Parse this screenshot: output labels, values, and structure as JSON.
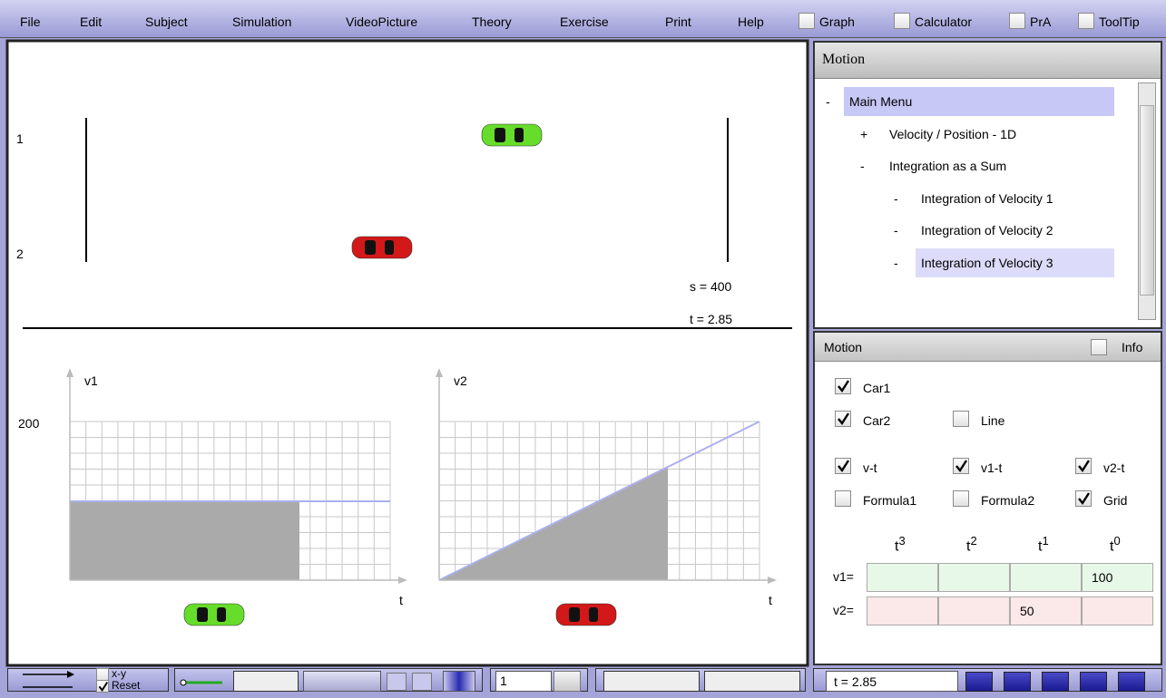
{
  "menu": {
    "items": [
      "File",
      "Edit",
      "Subject",
      "Simulation",
      "VideoPicture",
      "Theory",
      "Exercise",
      "Print",
      "Help"
    ],
    "toggles": [
      {
        "label": "Graph",
        "checked": false
      },
      {
        "label": "Calculator",
        "checked": false
      },
      {
        "label": "PrA",
        "checked": false
      },
      {
        "label": "ToolTip",
        "checked": false
      }
    ]
  },
  "scene": {
    "lanes": [
      "1",
      "2"
    ],
    "distance": "s = 400",
    "time": "t  = 2.85"
  },
  "graphs": [
    {
      "y_label": "v1",
      "y_tick": "200",
      "x_label": "t"
    },
    {
      "y_label": "v2",
      "x_label": "t"
    }
  ],
  "tree": {
    "title": "Motion",
    "items": [
      {
        "marker": "-",
        "label": "Main Menu",
        "level": 0,
        "selected": true
      },
      {
        "marker": "+",
        "label": "Velocity / Position - 1D",
        "level": 1,
        "selected": false
      },
      {
        "marker": "-",
        "label": "Integration as a Sum",
        "level": 1,
        "selected": false
      },
      {
        "marker": "-",
        "label": "Integration of Velocity 1",
        "level": 2,
        "selected": false
      },
      {
        "marker": "-",
        "label": "Integration of Velocity 2",
        "level": 2,
        "selected": false
      },
      {
        "marker": "-",
        "label": "Integration of Velocity 3",
        "level": 2,
        "selected": true
      }
    ]
  },
  "settings": {
    "title": "Motion",
    "info": {
      "label": "Info",
      "checked": false
    },
    "options": [
      {
        "label": "Car1",
        "checked": true
      },
      {
        "label": "Car2",
        "checked": true
      },
      {
        "label": "Line",
        "checked": false
      },
      {
        "label": "v-t",
        "checked": true
      },
      {
        "label": "v1-t",
        "checked": true
      },
      {
        "label": "v2-t",
        "checked": true
      },
      {
        "label": "Formula1",
        "checked": false
      },
      {
        "label": "Formula2",
        "checked": false
      },
      {
        "label": "Grid",
        "checked": true
      }
    ],
    "powers": [
      {
        "base": "t",
        "exp": "3"
      },
      {
        "base": "t",
        "exp": "2"
      },
      {
        "base": "t",
        "exp": "1"
      },
      {
        "base": "t",
        "exp": "0"
      }
    ],
    "rows": [
      {
        "label": "v1=",
        "cells": [
          null,
          null,
          null,
          "100"
        ]
      },
      {
        "label": "v2=",
        "cells": [
          null,
          null,
          "50",
          null
        ]
      }
    ]
  },
  "footer": {
    "xy": {
      "label": "x-y",
      "checked": false
    },
    "reset": {
      "label": "Reset",
      "checked": true
    },
    "step": "1",
    "time": "t = 2.85"
  }
}
